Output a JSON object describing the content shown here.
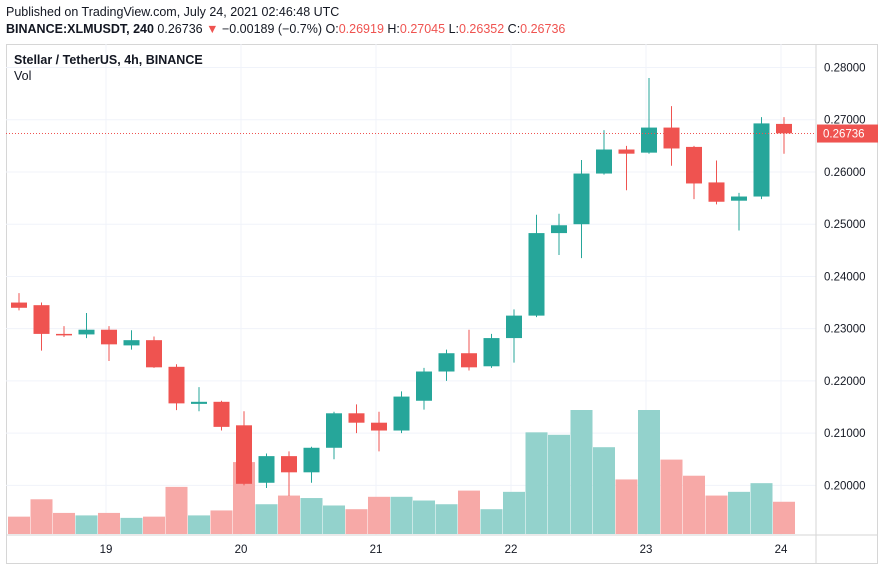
{
  "header": {
    "published": "Published on TradingView.com, July 24, 2021 02:46:48 UTC",
    "symbol": "BINANCE:XLMUSDT, 240",
    "last": "0.26736",
    "arrow": "▼",
    "change": "−0.00189 (−0.7%)",
    "o_label": "O:",
    "o_value": "0.26919",
    "h_label": "H:",
    "h_value": "0.27045",
    "l_label": "L:",
    "l_value": "0.26352",
    "c_label": "C:",
    "c_value": "0.26736"
  },
  "legend": {
    "title": "Stellar / TetherUS, 4h, BINANCE",
    "volume_label": "Vol"
  },
  "colors": {
    "up": "#26a69a",
    "down": "#ef5350",
    "vol_up": "#93d2cc",
    "vol_down": "#f7a9a7",
    "grid": "#f0f3fa",
    "price_line": "#ef5350"
  },
  "chart_data": {
    "type": "candlestick",
    "x_ticks": [
      "19",
      "20",
      "21",
      "22",
      "23",
      "24"
    ],
    "x_tick_index": [
      4,
      10,
      16,
      22,
      28,
      34
    ],
    "y_ticks": [
      "0.28000",
      "0.27000",
      "0.26000",
      "0.25000",
      "0.24000",
      "0.23000",
      "0.22000",
      "0.21000",
      "0.20000"
    ],
    "y_range": [
      0.1905,
      0.2845
    ],
    "last_price": 0.26736,
    "last_price_label": "0.26736",
    "candles": [
      {
        "o": 0.235,
        "h": 0.2368,
        "l": 0.2335,
        "c": 0.234
      },
      {
        "o": 0.2345,
        "h": 0.235,
        "l": 0.2258,
        "c": 0.229
      },
      {
        "o": 0.229,
        "h": 0.2305,
        "l": 0.2284,
        "c": 0.2289
      },
      {
        "o": 0.2289,
        "h": 0.233,
        "l": 0.2282,
        "c": 0.2298
      },
      {
        "o": 0.2298,
        "h": 0.2305,
        "l": 0.2238,
        "c": 0.227
      },
      {
        "o": 0.2268,
        "h": 0.2297,
        "l": 0.226,
        "c": 0.2278
      },
      {
        "o": 0.2278,
        "h": 0.2285,
        "l": 0.2225,
        "c": 0.2226
      },
      {
        "o": 0.2227,
        "h": 0.2232,
        "l": 0.2144,
        "c": 0.2157
      },
      {
        "o": 0.2156,
        "h": 0.2188,
        "l": 0.2142,
        "c": 0.216
      },
      {
        "o": 0.216,
        "h": 0.2162,
        "l": 0.2105,
        "c": 0.2112
      },
      {
        "o": 0.2115,
        "h": 0.2142,
        "l": 0.2,
        "c": 0.2003
      },
      {
        "o": 0.2005,
        "h": 0.2061,
        "l": 0.1995,
        "c": 0.2056
      },
      {
        "o": 0.2056,
        "h": 0.2065,
        "l": 0.198,
        "c": 0.2025
      },
      {
        "o": 0.2025,
        "h": 0.2074,
        "l": 0.2005,
        "c": 0.2072
      },
      {
        "o": 0.2072,
        "h": 0.2141,
        "l": 0.205,
        "c": 0.2138
      },
      {
        "o": 0.2138,
        "h": 0.2155,
        "l": 0.21,
        "c": 0.212
      },
      {
        "o": 0.212,
        "h": 0.2141,
        "l": 0.2065,
        "c": 0.2105
      },
      {
        "o": 0.2105,
        "h": 0.218,
        "l": 0.21,
        "c": 0.217
      },
      {
        "o": 0.2162,
        "h": 0.2225,
        "l": 0.2145,
        "c": 0.2218
      },
      {
        "o": 0.2218,
        "h": 0.226,
        "l": 0.22,
        "c": 0.2253
      },
      {
        "o": 0.2253,
        "h": 0.2298,
        "l": 0.222,
        "c": 0.2226
      },
      {
        "o": 0.2228,
        "h": 0.229,
        "l": 0.2225,
        "c": 0.2282
      },
      {
        "o": 0.2282,
        "h": 0.2337,
        "l": 0.2235,
        "c": 0.2325
      },
      {
        "o": 0.2325,
        "h": 0.2518,
        "l": 0.2322,
        "c": 0.2483
      },
      {
        "o": 0.2483,
        "h": 0.252,
        "l": 0.2441,
        "c": 0.2498
      },
      {
        "o": 0.25,
        "h": 0.2623,
        "l": 0.2435,
        "c": 0.2597
      },
      {
        "o": 0.2597,
        "h": 0.268,
        "l": 0.2595,
        "c": 0.2643
      },
      {
        "o": 0.2643,
        "h": 0.265,
        "l": 0.2565,
        "c": 0.2635
      },
      {
        "o": 0.2637,
        "h": 0.278,
        "l": 0.2635,
        "c": 0.2685
      },
      {
        "o": 0.2685,
        "h": 0.2726,
        "l": 0.2612,
        "c": 0.2645
      },
      {
        "o": 0.2648,
        "h": 0.265,
        "l": 0.2548,
        "c": 0.2578
      },
      {
        "o": 0.258,
        "h": 0.2622,
        "l": 0.2538,
        "c": 0.2543
      },
      {
        "o": 0.2545,
        "h": 0.256,
        "l": 0.2488,
        "c": 0.2553
      },
      {
        "o": 0.2553,
        "h": 0.2705,
        "l": 0.2548,
        "c": 0.2693
      },
      {
        "o": 0.2692,
        "h": 0.2705,
        "l": 0.2635,
        "c": 0.2674
      }
    ],
    "volume": [
      0.14,
      0.28,
      0.17,
      0.15,
      0.17,
      0.13,
      0.14,
      0.38,
      0.15,
      0.19,
      0.58,
      0.24,
      0.31,
      0.29,
      0.23,
      0.2,
      0.3,
      0.3,
      0.27,
      0.24,
      0.35,
      0.2,
      0.34,
      0.82,
      0.8,
      1.0,
      0.7,
      0.44,
      1.0,
      0.6,
      0.47,
      0.31,
      0.34,
      0.41,
      0.26
    ]
  }
}
